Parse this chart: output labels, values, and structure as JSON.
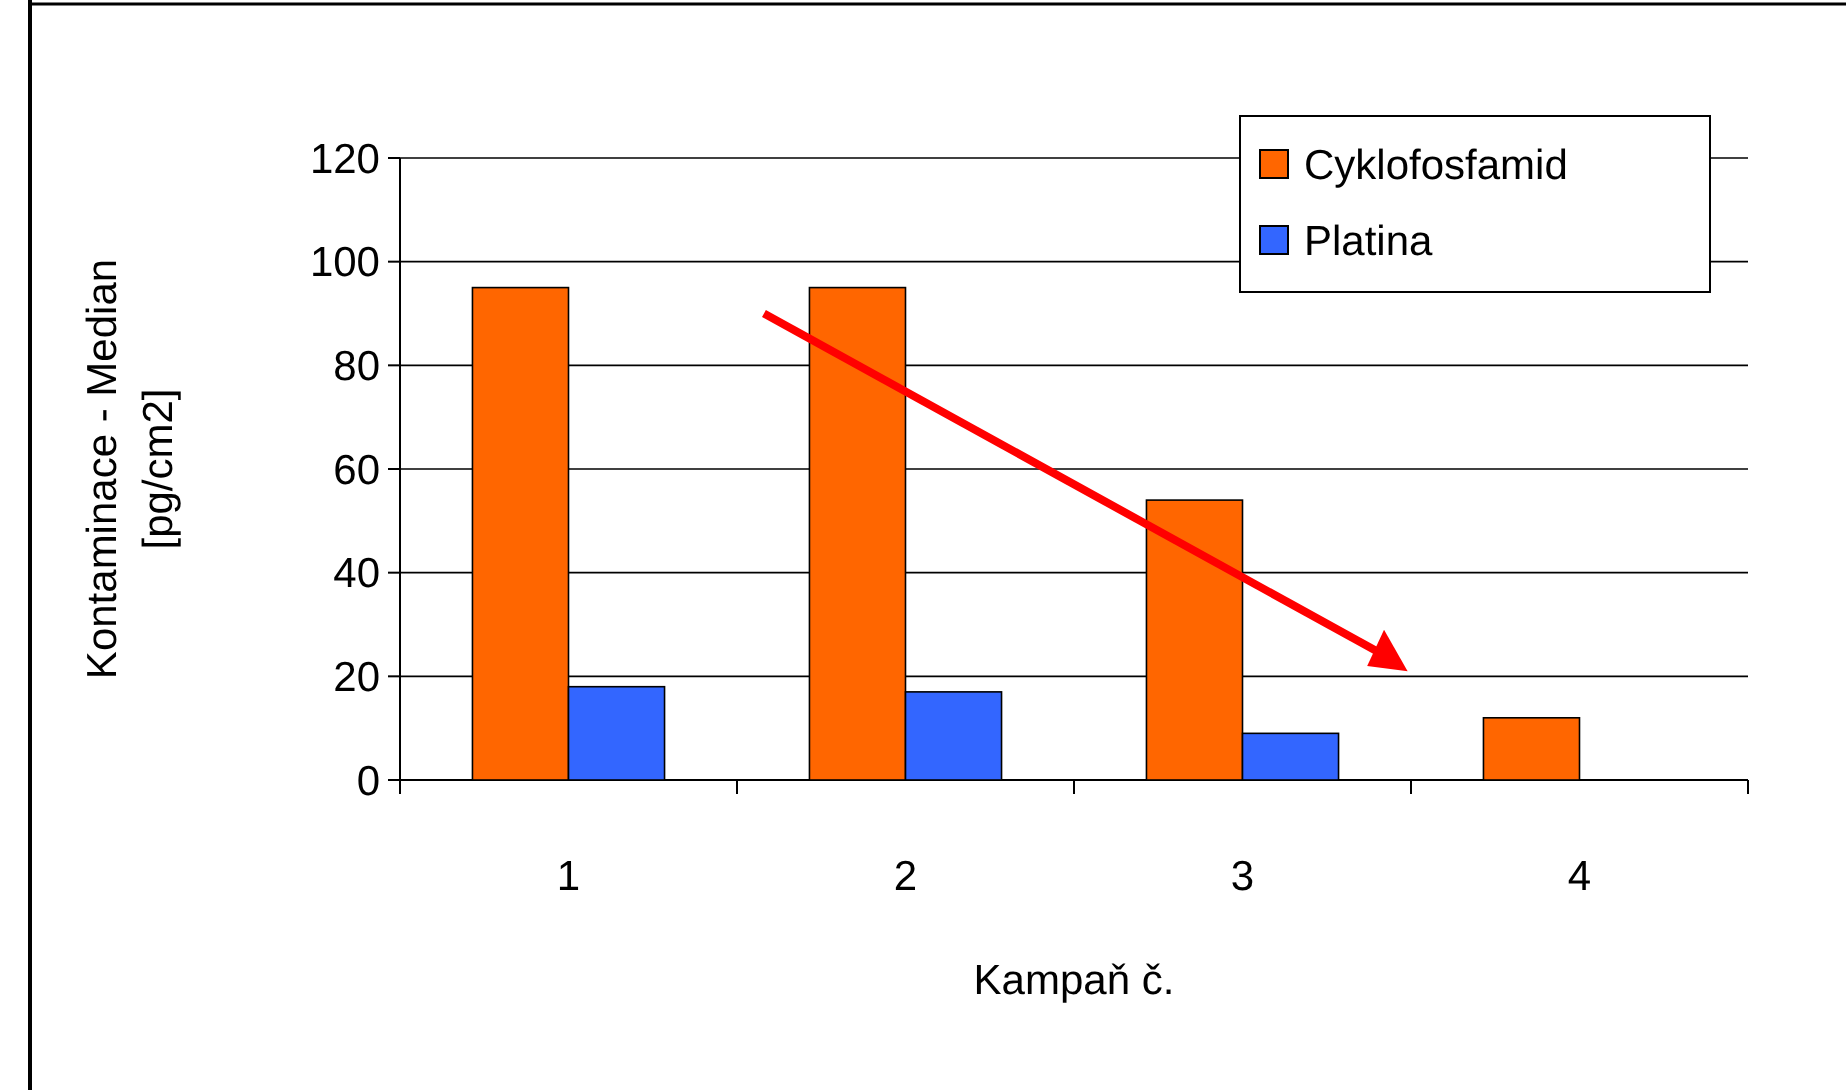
{
  "chart_data": {
    "type": "bar",
    "xlabel": "Kampaň č.",
    "ylabel": "Kontaminace - Median [pg/cm2]",
    "categories": [
      "1",
      "2",
      "3",
      "4"
    ],
    "series": [
      {
        "name": "Cyklofosfamid",
        "color": "#ff6600",
        "values": [
          95,
          95,
          54,
          12
        ]
      },
      {
        "name": "Platina",
        "color": "#3366ff",
        "values": [
          18,
          17,
          9,
          null
        ]
      }
    ],
    "ylim": [
      0,
      120
    ],
    "yticks": [
      0,
      20,
      40,
      60,
      80,
      100,
      120
    ],
    "grid": "y",
    "legend": "top right"
  }
}
